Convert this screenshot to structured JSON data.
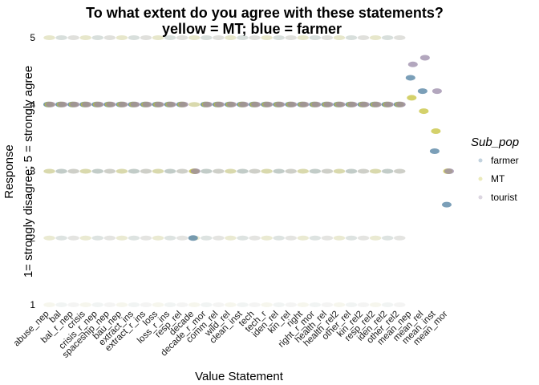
{
  "chart_data": {
    "type": "scatter",
    "title": "To what extent do you agree with these statements?",
    "subtitle": "yellow = MT; blue = farmer",
    "xlabel": "Value Statement",
    "ylabel_line1": "Response",
    "ylabel_line2": "1= strongly disagree; 5 = strongly agree",
    "ylim": [
      1,
      5
    ],
    "yticks": [
      1,
      2,
      3,
      4,
      5
    ],
    "grid": false,
    "legend": {
      "title": "Sub_pop",
      "placement": "right",
      "entries": [
        "farmer",
        "MT",
        "tourist"
      ]
    },
    "categories": [
      "abuse_nep",
      "bal",
      "bal_r_nep",
      "crisis",
      "crisis_r_nep",
      "spaceship_nep",
      "bau_nep",
      "extract_ins",
      "extract_r_ins",
      "loss",
      "loss_r_ins",
      "resp_rel",
      "decade",
      "decade_r_mor",
      "comm_rel",
      "wild_rel",
      "clean_inst",
      "tech",
      "tech_r",
      "iden_rel",
      "kin_rel",
      "right",
      "right_r_mor",
      "health_rel",
      "health_rel2",
      "other_rel",
      "kin_rel2",
      "resp_rel2",
      "iden_rel2",
      "other_rel2",
      "mean_nep",
      "mean_rel",
      "mean_inst",
      "mean_mor"
    ],
    "series": [
      {
        "name": "farmer",
        "color": "#4f7fa0",
        "values": [
          4,
          4,
          4,
          4,
          4,
          4,
          4,
          4,
          4,
          4,
          4,
          4,
          2,
          4,
          4,
          4,
          4,
          4,
          4,
          4,
          4,
          4,
          4,
          4,
          4,
          4,
          4,
          4,
          4,
          4,
          4.4,
          4.2,
          3.3,
          2.5
        ]
      },
      {
        "name": "MT",
        "color": "#c5c23a",
        "values": [
          4,
          4,
          4,
          4,
          4,
          4,
          4,
          4,
          4,
          4,
          4,
          4,
          3,
          4,
          4,
          4,
          4,
          4,
          4,
          4,
          4,
          4,
          4,
          4,
          4,
          4,
          4,
          4,
          4,
          4,
          4.1,
          3.9,
          3.6,
          3
        ]
      },
      {
        "name": "tourist",
        "color": "#9a8aa8",
        "values": [
          4,
          4,
          4,
          4,
          4,
          4,
          4,
          4,
          4,
          4,
          4,
          4,
          3,
          4,
          4,
          4,
          4,
          4,
          4,
          4,
          4,
          4,
          4,
          4,
          4,
          4,
          4,
          4,
          4,
          4,
          4.6,
          4.7,
          4.2,
          3
        ]
      }
    ]
  }
}
